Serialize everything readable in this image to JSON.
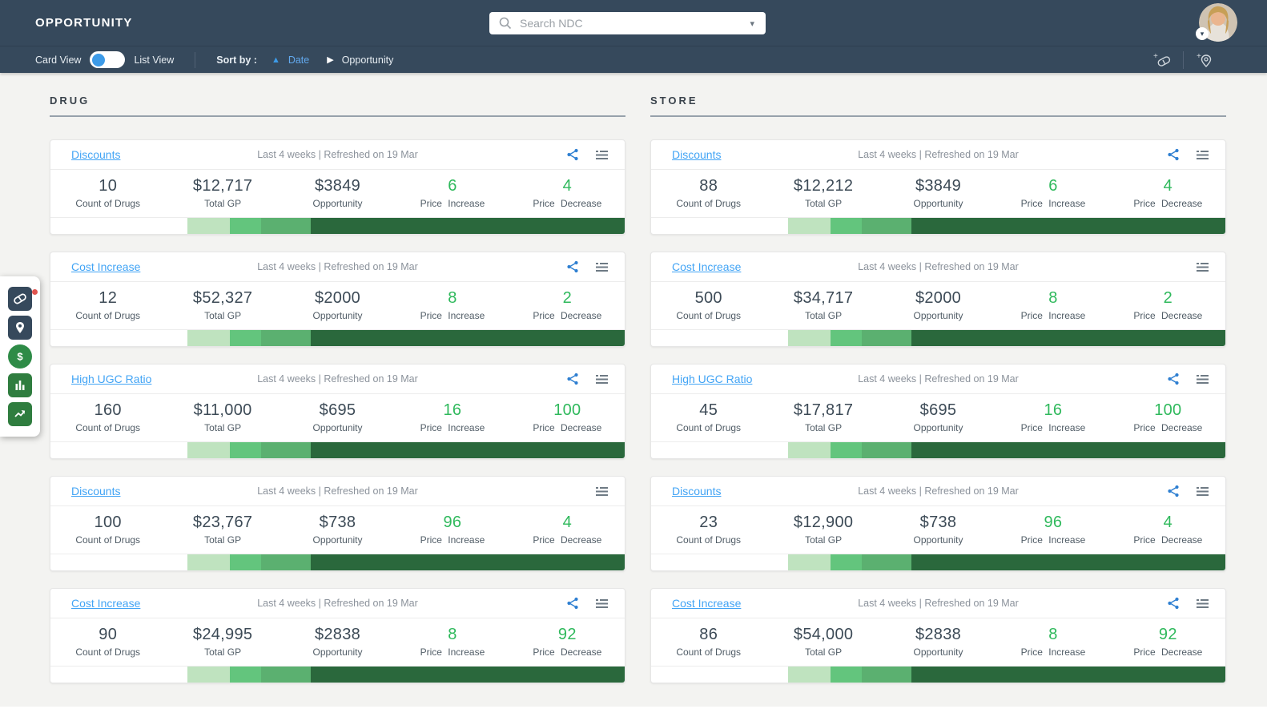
{
  "header": {
    "title": "OPPORTUNITY",
    "search_placeholder": "Search NDC"
  },
  "toolbar": {
    "card_view": "Card View",
    "list_view": "List View",
    "sort_by": "Sort by :",
    "sort_primary": "Date",
    "sort_secondary": "Opportunity"
  },
  "sidebar": {
    "items": [
      "drug-pill",
      "store-location",
      "pricing-dollar",
      "analytics-bars",
      "trends-line"
    ],
    "badge_on": "drug-pill",
    "badge_color": "#e0534e"
  },
  "labels": {
    "count": "Count of Drugs",
    "total_gp": "Total GP",
    "opportunity": "Opportunity",
    "price_increase": "Price Increase",
    "price_decrease": "Price Decrease"
  },
  "colors": {
    "header_bg": "#36495c",
    "accent_blue": "#3d9be8",
    "link_blue": "#42a4f5",
    "value_green": "#2fb95c",
    "sidebar_green": "#2f7d3f"
  },
  "bar_segments": [
    {
      "color": "#ffffff",
      "percent": 23.8
    },
    {
      "color": "#bfe3bf",
      "percent": 7.5
    },
    {
      "color": "#63c57d",
      "percent": 5.4
    },
    {
      "color": "#5bb070",
      "percent": 8.6
    },
    {
      "color": "#2a683c",
      "percent": 54.7
    }
  ],
  "columns": [
    {
      "heading": "DRUG",
      "cards": [
        {
          "title": "Discounts",
          "meta": "Last 4 weeks | Refreshed on 19 Mar",
          "has_share": true,
          "count": "10",
          "total_gp": "$12,717",
          "opportunity": "$3849",
          "price_increase": "6",
          "price_decrease": "4"
        },
        {
          "title": "Cost Increase",
          "meta": "Last 4 weeks | Refreshed on 19 Mar",
          "has_share": true,
          "count": "12",
          "total_gp": "$52,327",
          "opportunity": "$2000",
          "price_increase": "8",
          "price_decrease": "2"
        },
        {
          "title": "High UGC Ratio",
          "meta": "Last 4 weeks | Refreshed on 19 Mar",
          "has_share": true,
          "count": "160",
          "total_gp": "$11,000",
          "opportunity": "$695",
          "price_increase": "16",
          "price_decrease": "100"
        },
        {
          "title": "Discounts",
          "meta": "Last 4 weeks | Refreshed on 19 Mar",
          "has_share": false,
          "count": "100",
          "total_gp": "$23,767",
          "opportunity": "$738",
          "price_increase": "96",
          "price_decrease": "4"
        },
        {
          "title": "Cost Increase",
          "meta": "Last 4 weeks | Refreshed on 19 Mar",
          "has_share": true,
          "count": "90",
          "total_gp": "$24,995",
          "opportunity": "$2838",
          "price_increase": "8",
          "price_decrease": "92"
        }
      ]
    },
    {
      "heading": "STORE",
      "cards": [
        {
          "title": "Discounts",
          "meta": "Last 4 weeks | Refreshed on 19 Mar",
          "has_share": true,
          "count": "88",
          "total_gp": "$12,212",
          "opportunity": "$3849",
          "price_increase": "6",
          "price_decrease": "4"
        },
        {
          "title": "Cost Increase",
          "meta": "Last 4 weeks | Refreshed on 19 Mar",
          "has_share": false,
          "count": "500",
          "total_gp": "$34,717",
          "opportunity": "$2000",
          "price_increase": "8",
          "price_decrease": "2"
        },
        {
          "title": "High UGC Ratio",
          "meta": "Last 4 weeks | Refreshed on 19 Mar",
          "has_share": true,
          "count": "45",
          "total_gp": "$17,817",
          "opportunity": "$695",
          "price_increase": "16",
          "price_decrease": "100"
        },
        {
          "title": "Discounts",
          "meta": "Last 4 weeks | Refreshed on 19 Mar",
          "has_share": true,
          "count": "23",
          "total_gp": "$12,900",
          "opportunity": "$738",
          "price_increase": "96",
          "price_decrease": "4"
        },
        {
          "title": "Cost Increase",
          "meta": "Last 4 weeks | Refreshed on 19 Mar",
          "has_share": true,
          "count": "86",
          "total_gp": "$54,000",
          "opportunity": "$2838",
          "price_increase": "8",
          "price_decrease": "92"
        }
      ]
    }
  ]
}
